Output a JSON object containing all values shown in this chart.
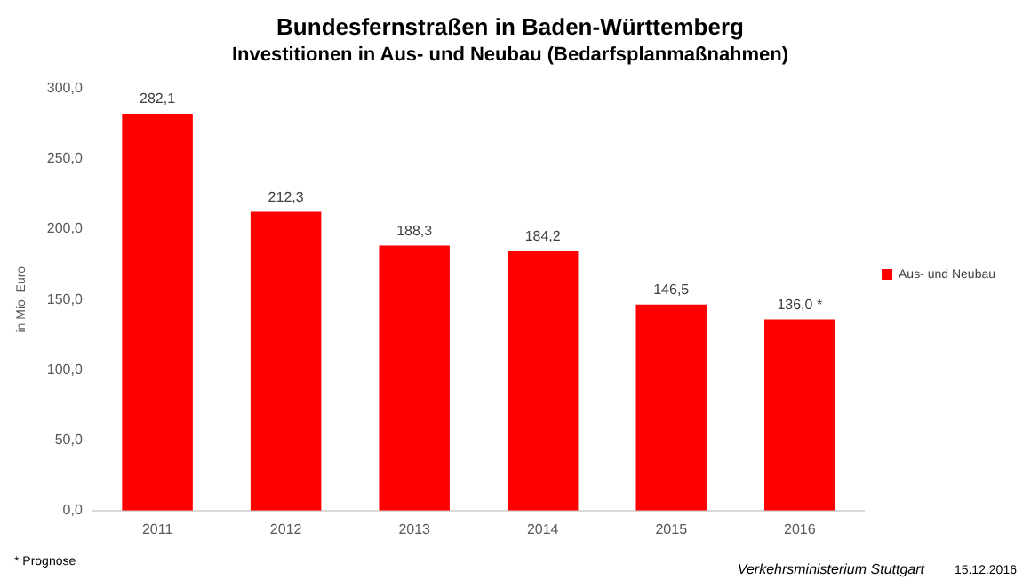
{
  "chart_data": {
    "type": "bar",
    "title": "Bundesfernstraßen in Baden-Württemberg",
    "subtitle": "Investitionen in Aus- und Neubau (Bedarfsplanmaßnahmen)",
    "ylabel": "in Mio. Euro",
    "categories": [
      "2011",
      "2012",
      "2013",
      "2014",
      "2015",
      "2016"
    ],
    "series": [
      {
        "name": "Aus- und Neubau",
        "color": "#ff0000",
        "values": [
          282.1,
          212.3,
          188.3,
          184.2,
          146.5,
          136.0
        ],
        "value_labels": [
          "282,1",
          "212,3",
          "188,3",
          "184,2",
          "146,5",
          "136,0 *"
        ]
      }
    ],
    "ylim": [
      0,
      300
    ],
    "yticks": [
      {
        "value": 0,
        "label": "0,0"
      },
      {
        "value": 50,
        "label": "50,0"
      },
      {
        "value": 100,
        "label": "100,0"
      },
      {
        "value": 150,
        "label": "150,0"
      },
      {
        "value": 200,
        "label": "200,0"
      },
      {
        "value": 250,
        "label": "250,0"
      },
      {
        "value": 300,
        "label": "300,0"
      }
    ],
    "grid": false,
    "legend": "right",
    "annotations": [
      "* Prognose",
      "Verkehrsministerium Stuttgart",
      "15.12.2016"
    ]
  }
}
